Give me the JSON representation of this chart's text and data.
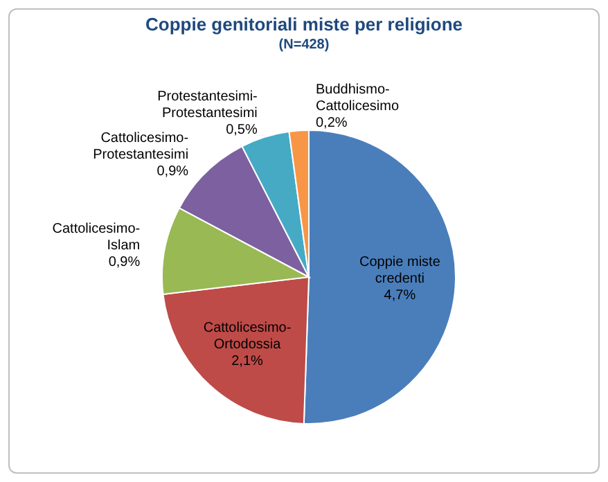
{
  "chart_data": {
    "type": "pie",
    "title": "Coppie genitoriali miste per religione",
    "subtitle": "(N=428)",
    "categories": [
      "Coppie miste credenti",
      "Cattolicesimo-Ortodossia",
      "Cattolicesimo-Islam",
      "Cattolicesimo-Protestantesimi",
      "Protestantesimi-Protestantesimi",
      "Buddhismo-Cattolicesimo"
    ],
    "values": [
      4.7,
      2.1,
      0.9,
      0.9,
      0.5,
      0.2
    ],
    "value_labels": [
      "4,7%",
      "2,1%",
      "0,9%",
      "0,9%",
      "0,5%",
      "0,2%"
    ],
    "colors": [
      "#4a7ebb",
      "#be4b48",
      "#98b954",
      "#7d60a0",
      "#46aac5",
      "#f79646"
    ]
  }
}
